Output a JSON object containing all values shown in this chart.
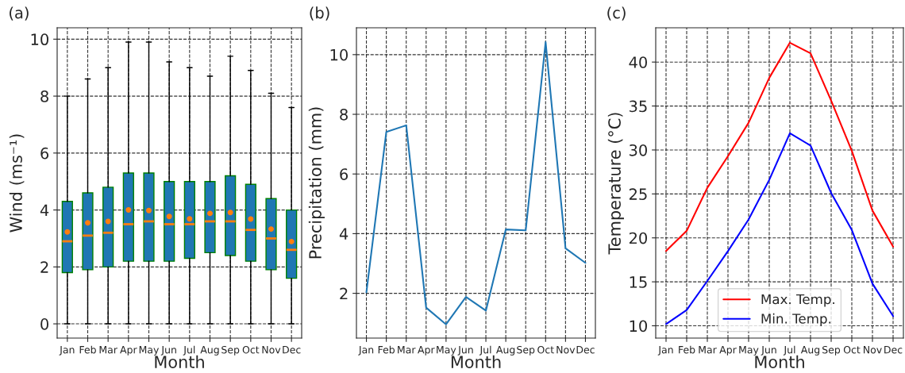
{
  "chart_data": [
    {
      "type": "box",
      "title": "(a)",
      "xlabel": "Month",
      "ylabel": "Wind (ms⁻¹)",
      "categories": [
        "Jan",
        "Feb",
        "Mar",
        "Apr",
        "May",
        "Jun",
        "Jul",
        "Aug",
        "Sep",
        "Oct",
        "Nov",
        "Dec"
      ],
      "color": "#1f77b4",
      "boxes": [
        {
          "low": 0,
          "q1": 1.8,
          "median": 2.9,
          "q3": 4.3,
          "high": 8.0,
          "mean": 3.23
        },
        {
          "low": 0,
          "q1": 1.9,
          "median": 3.1,
          "q3": 4.6,
          "high": 8.6,
          "mean": 3.55
        },
        {
          "low": 0,
          "q1": 2.0,
          "median": 3.2,
          "q3": 4.8,
          "high": 9.0,
          "mean": 3.6
        },
        {
          "low": 0,
          "q1": 2.2,
          "median": 3.5,
          "q3": 5.3,
          "high": 9.9,
          "mean": 4.0
        },
        {
          "low": 0,
          "q1": 2.2,
          "median": 3.6,
          "q3": 5.3,
          "high": 9.9,
          "mean": 3.98
        },
        {
          "low": 0,
          "q1": 2.2,
          "median": 3.5,
          "q3": 5.0,
          "high": 9.2,
          "mean": 3.77
        },
        {
          "low": 0,
          "q1": 2.3,
          "median": 3.5,
          "q3": 5.0,
          "high": 9.0,
          "mean": 3.69
        },
        {
          "low": 0,
          "q1": 2.5,
          "median": 3.6,
          "q3": 5.0,
          "high": 8.7,
          "mean": 3.88
        },
        {
          "low": 0,
          "q1": 2.4,
          "median": 3.6,
          "q3": 5.2,
          "high": 9.4,
          "mean": 3.91
        },
        {
          "low": 0,
          "q1": 2.2,
          "median": 3.3,
          "q3": 4.9,
          "high": 8.9,
          "mean": 3.68
        },
        {
          "low": 0,
          "q1": 1.9,
          "median": 3.0,
          "q3": 4.4,
          "high": 8.1,
          "mean": 3.33
        },
        {
          "low": 0,
          "q1": 1.6,
          "median": 2.6,
          "q3": 4.0,
          "high": 7.6,
          "mean": 2.89
        }
      ],
      "ylim": [
        -0.5,
        10.4
      ],
      "yticks": [
        0,
        2,
        4,
        6,
        8,
        10
      ],
      "grid": true
    },
    {
      "type": "line",
      "title": "(b)",
      "xlabel": "Month",
      "ylabel": "Precipitation (mm)",
      "categories": [
        "Jan",
        "Feb",
        "Mar",
        "Apr",
        "May",
        "Jun",
        "Jul",
        "Aug",
        "Sep",
        "Oct",
        "Nov",
        "Dec"
      ],
      "series": [
        {
          "color": "#1f77b4",
          "values": [
            2.03,
            7.41,
            7.63,
            1.52,
            0.96,
            1.88,
            1.42,
            4.14,
            4.11,
            10.42,
            3.51,
            3.02
          ]
        }
      ],
      "ylim": [
        0.5,
        10.9
      ],
      "yticks": [
        2,
        4,
        6,
        8,
        10
      ],
      "grid": true
    },
    {
      "type": "line",
      "title": "(c)",
      "xlabel": "Month",
      "ylabel": "Temperature (°C)",
      "categories": [
        "Jan",
        "Feb",
        "Mar",
        "Apr",
        "May",
        "Jun",
        "Jul",
        "Aug",
        "Sep",
        "Oct",
        "Nov",
        "Dec"
      ],
      "series": [
        {
          "name": "Max. Temp.",
          "color": "#ff0000",
          "values": [
            18.5,
            20.8,
            25.7,
            29.3,
            33.1,
            38.2,
            42.2,
            41.0,
            35.6,
            29.9,
            23.1,
            19.0
          ]
        },
        {
          "name": "Min. Temp.",
          "color": "#0000ff",
          "values": [
            10.2,
            11.8,
            15.1,
            18.5,
            22.1,
            26.6,
            31.9,
            30.5,
            25.1,
            20.9,
            14.8,
            11.1
          ]
        }
      ],
      "ylim": [
        8.6,
        43.9
      ],
      "yticks": [
        10,
        15,
        20,
        25,
        30,
        35,
        40
      ],
      "grid": true,
      "legend": "bottom"
    }
  ]
}
